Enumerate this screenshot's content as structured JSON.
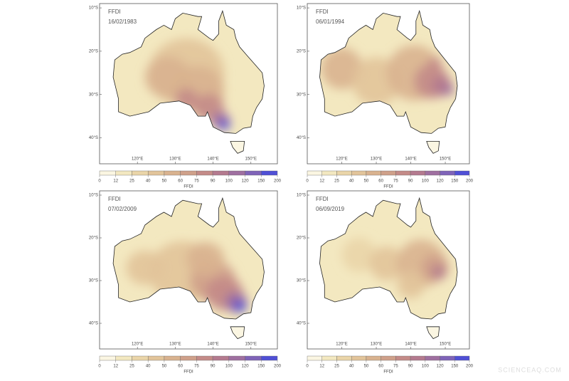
{
  "panels": [
    {
      "label": "FFDI",
      "date": "16/02/1983"
    },
    {
      "label": "FFDI",
      "date": "06/01/1994"
    },
    {
      "label": "FFDI",
      "date": "07/02/2009"
    },
    {
      "label": "FFDI",
      "date": "06/09/2019"
    }
  ],
  "lat_ticks": [
    {
      "value": -10,
      "label": "10°S"
    },
    {
      "value": -20,
      "label": "20°S"
    },
    {
      "value": -30,
      "label": "30°S"
    },
    {
      "value": -40,
      "label": "40°S"
    }
  ],
  "lon_ticks": [
    {
      "value": 120,
      "label": "120°E"
    },
    {
      "value": 130,
      "label": "130°E"
    },
    {
      "value": 140,
      "label": "140°E"
    },
    {
      "value": 150,
      "label": "150°E"
    }
  ],
  "colorbar": {
    "label": "FFDI",
    "ticks": [
      0,
      12,
      25,
      40,
      50,
      60,
      75,
      90,
      100,
      120,
      150,
      200
    ],
    "colors": [
      "#fbf6e2",
      "#f3e8c0",
      "#ead5a8",
      "#e2c49a",
      "#d9b28f",
      "#cfa08a",
      "#c48b88",
      "#b47a8f",
      "#9f6fa0",
      "#7f63b8",
      "#4f4fd6"
    ]
  },
  "watermark": "SCIENCEAQ.COM"
}
